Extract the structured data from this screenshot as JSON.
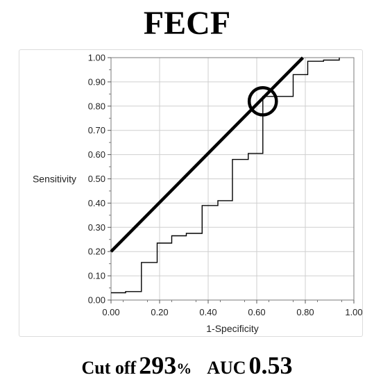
{
  "title": "FECF",
  "footer": {
    "cutoff_label": "Cut off",
    "cutoff_value": "293",
    "cutoff_unit": "%",
    "auc_label": "AUC",
    "auc_value": "0.53"
  },
  "chart_data": {
    "type": "line",
    "title": "",
    "xlabel": "1-Specificity",
    "ylabel": "Sensitivity",
    "xlim": [
      0,
      1
    ],
    "ylim": [
      0,
      1
    ],
    "x_ticks": [
      "0.00",
      "0.20",
      "0.40",
      "0.60",
      "0.80",
      "1.00"
    ],
    "y_ticks": [
      "0.00",
      "0.10",
      "0.20",
      "0.30",
      "0.40",
      "0.50",
      "0.60",
      "0.70",
      "0.80",
      "0.90",
      "1.00"
    ],
    "grid": true,
    "series": [
      {
        "type": "step",
        "color": "#000000",
        "points": [
          [
            0,
            0.03
          ],
          [
            0.06,
            0.03
          ],
          [
            0.06,
            0.035
          ],
          [
            0.125,
            0.035
          ],
          [
            0.125,
            0.155
          ],
          [
            0.19,
            0.155
          ],
          [
            0.19,
            0.235
          ],
          [
            0.25,
            0.235
          ],
          [
            0.25,
            0.265
          ],
          [
            0.31,
            0.265
          ],
          [
            0.31,
            0.275
          ],
          [
            0.375,
            0.275
          ],
          [
            0.375,
            0.39
          ],
          [
            0.44,
            0.39
          ],
          [
            0.44,
            0.41
          ],
          [
            0.5,
            0.41
          ],
          [
            0.5,
            0.58
          ],
          [
            0.565,
            0.58
          ],
          [
            0.565,
            0.605
          ],
          [
            0.625,
            0.605
          ],
          [
            0.625,
            0.84
          ],
          [
            0.69,
            0.84
          ],
          [
            0.69,
            0.84
          ],
          [
            0.75,
            0.84
          ],
          [
            0.75,
            0.93
          ],
          [
            0.81,
            0.93
          ],
          [
            0.81,
            0.985
          ],
          [
            0.875,
            0.985
          ],
          [
            0.875,
            0.99
          ],
          [
            0.94,
            0.99
          ],
          [
            0.94,
            1.0
          ]
        ]
      }
    ],
    "annotations": {
      "tangent_line": {
        "from": [
          0,
          0.2
        ],
        "to": [
          0.79,
          1.0
        ],
        "color": "#000000"
      },
      "cutoff_circle": {
        "center": [
          0.625,
          0.82
        ],
        "radius_data": 0.056,
        "color": "#000000"
      }
    }
  }
}
